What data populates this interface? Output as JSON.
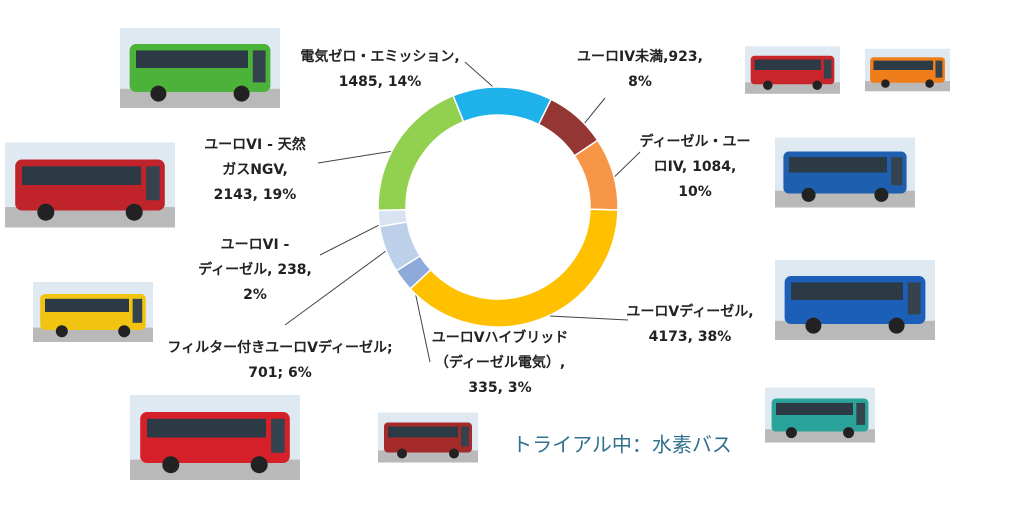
{
  "chart_data": {
    "type": "donut",
    "labels": [
      [
        "電気ゼロ・エミッション,",
        "1485, 14%"
      ],
      [
        "ユーロIV未満,923,",
        "8%"
      ],
      [
        "ディーゼル・ユー",
        "ロIV, 1084,",
        "10%"
      ],
      [
        "ユーロVディーゼル,",
        "4173, 38%"
      ],
      [
        "ユーロVハイブリッド",
        "（ディーゼル電気）,",
        "335, 3%"
      ],
      [
        "フィルター付きユーロVディーゼル;",
        "701; 6%"
      ],
      [
        "ユーロVI -",
        "ディーゼル, 238,",
        "2%"
      ],
      [
        "ユーロVI - 天然",
        "ガスNGV,",
        "2143, 19%"
      ]
    ],
    "values": [
      1485,
      923,
      1084,
      4173,
      335,
      701,
      238,
      2143
    ],
    "colors": [
      "#1fb1ea",
      "#943634",
      "#f79646",
      "#ffc000",
      "#8eaadb",
      "#bdd0ea",
      "#d9e3f1",
      "#92d050"
    ],
    "annotation": "トライアル中：水素バス"
  }
}
